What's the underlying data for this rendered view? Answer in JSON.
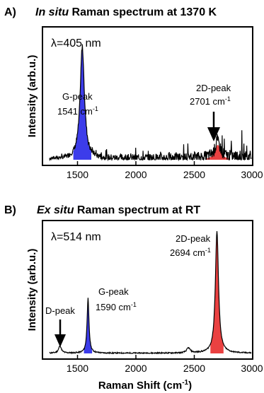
{
  "chart_data": [
    {
      "type": "line",
      "panel_label": "A)",
      "title_italic": "In situ",
      "title_rest": " Raman spectrum at 1370 K",
      "ylabel": "Intensity (arb.u.)",
      "xlabel": "",
      "xlim": [
        1200,
        3000
      ],
      "xticks": [
        1500,
        2000,
        2500,
        3000
      ],
      "wavelength_label": "λ=405 nm",
      "wavelength_color": "#b100b1",
      "grid": false,
      "peaks": [
        {
          "name": "G-peak",
          "position": 1541,
          "unit": "cm",
          "unit_exp": "-1",
          "rel_height": 0.9,
          "width": 22,
          "fill": "#1a1ae6"
        },
        {
          "name": "2D-peak",
          "position": 2701,
          "unit": "cm",
          "unit_exp": "-1",
          "rel_height": 0.12,
          "width": 30,
          "fill": "#e62020"
        }
      ],
      "noise_level": 0.08
    },
    {
      "type": "line",
      "panel_label": "B)",
      "title_italic": "Ex situ",
      "title_rest": " Raman spectrum at RT",
      "ylabel": "Intensity (arb.u.)",
      "xlabel": "Raman Shift (cm",
      "xlabel_exp": "-1",
      "xlabel_close": ")",
      "xlim": [
        1200,
        3000
      ],
      "xticks": [
        1500,
        2000,
        2500,
        3000
      ],
      "wavelength_label": "λ=514 nm",
      "wavelength_color": "#00dd00",
      "grid": false,
      "peaks": [
        {
          "name": "D-peak",
          "position": 1350,
          "rel_height": 0.06,
          "width": 14,
          "fill": "none"
        },
        {
          "name": "G-peak",
          "position": 1590,
          "unit": "cm",
          "unit_exp": "-1",
          "rel_height": 0.44,
          "width": 10,
          "fill": "#1a1ae6"
        },
        {
          "name": "",
          "position": 2450,
          "rel_height": 0.04,
          "width": 18,
          "fill": "none"
        },
        {
          "name": "2D-peak",
          "position": 2694,
          "unit": "cm",
          "unit_exp": "-1",
          "rel_height": 0.98,
          "width": 16,
          "fill": "#e62020"
        }
      ],
      "noise_level": 0.01
    }
  ]
}
